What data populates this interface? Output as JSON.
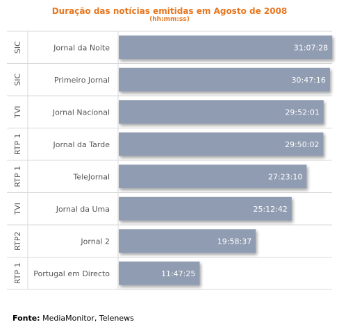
{
  "title": "Duração das notícias emitidas em Agosto de 2008",
  "subtitle": "(hh:mm:ss)",
  "source": {
    "label": "Fonte:",
    "text": "MediaMonitor, Telenews"
  },
  "colors": {
    "bar": "#8f9cb1",
    "title": "#e8761f",
    "grid": "#d9d9d9",
    "label": "#555555",
    "value_text": "#ffffff"
  },
  "chart_data": {
    "type": "bar",
    "orientation": "horizontal",
    "title": "Duração das notícias emitidas em Agosto de 2008",
    "subtitle": "(hh:mm:ss)",
    "xlabel": "",
    "ylabel": "",
    "xlim": [
      0,
      31.2
    ],
    "grid": true,
    "legend": "none",
    "value_unit": "hours",
    "categories": [
      {
        "channel": "SIC",
        "program": "Jornal da Noite"
      },
      {
        "channel": "SIC",
        "program": "Primeiro Jornal"
      },
      {
        "channel": "TVI",
        "program": "Jornal Nacional"
      },
      {
        "channel": "RTP 1",
        "program": "Jornal da Tarde"
      },
      {
        "channel": "RTP 1",
        "program": "TeleJornal"
      },
      {
        "channel": "TVI",
        "program": "Jornal da Uma"
      },
      {
        "channel": "RTP2",
        "program": "Jornal 2"
      },
      {
        "channel": "RTP 1",
        "program": "Portugal em Directo"
      }
    ],
    "labels": [
      "31:07:28",
      "30:47:16",
      "29:52:01",
      "29:50:02",
      "27:23:10",
      "25:12:42",
      "19:58:37",
      "11:47:25"
    ],
    "values": [
      31.1244,
      30.7878,
      29.8669,
      29.8339,
      27.3861,
      25.2117,
      19.9769,
      11.7903
    ]
  }
}
